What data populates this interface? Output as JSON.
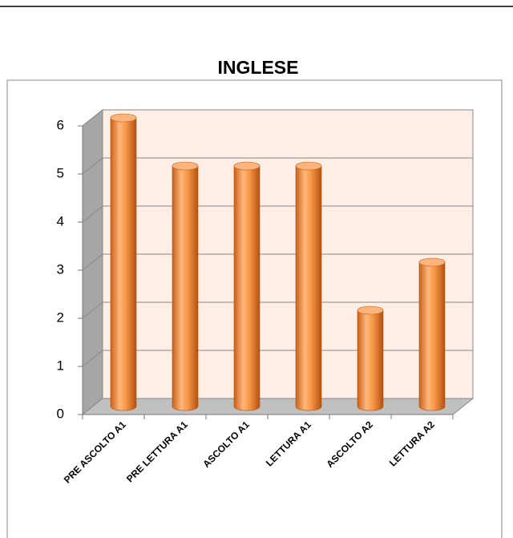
{
  "chart_data": {
    "type": "bar",
    "title": "INGLESE",
    "categories": [
      "PRE ASCOLTO A1",
      "PRE LETTURA A1",
      "ASCOLTO A1",
      "LETTURA A1",
      "ASCOLTO A2",
      "LETTURA A2"
    ],
    "values": [
      6,
      5,
      5,
      5,
      2,
      3
    ],
    "color": "#f79646",
    "ylim": [
      0,
      6
    ],
    "yticks": [
      0,
      1,
      2,
      3,
      4,
      5,
      6
    ],
    "grid": true
  }
}
